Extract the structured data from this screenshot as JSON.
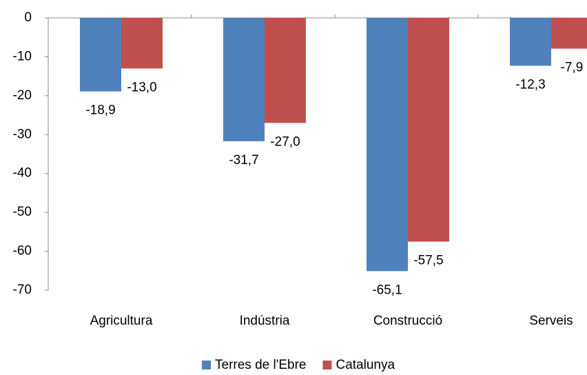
{
  "chart_data": {
    "type": "bar",
    "categories": [
      "Agricultura",
      "Indústria",
      "Construcció",
      "Serveis"
    ],
    "series": [
      {
        "name": "Terres de l'Ebre",
        "color": "#4f81bd",
        "values": [
          -18.9,
          -31.7,
          -65.1,
          -12.3
        ],
        "value_labels": [
          "-18,9",
          "-31,7",
          "-65,1",
          "-12,3"
        ]
      },
      {
        "name": "Catalunya",
        "color": "#c0504d",
        "values": [
          -13.0,
          -27.0,
          -57.5,
          -7.9
        ],
        "value_labels": [
          "-13,0",
          "-27,0",
          "-57,5",
          "-7,9"
        ]
      }
    ],
    "ylim": [
      -70,
      0
    ],
    "yticks": [
      0,
      -10,
      -20,
      -30,
      -40,
      -50,
      -60,
      -70
    ],
    "grid": false,
    "legend": "bottom"
  }
}
